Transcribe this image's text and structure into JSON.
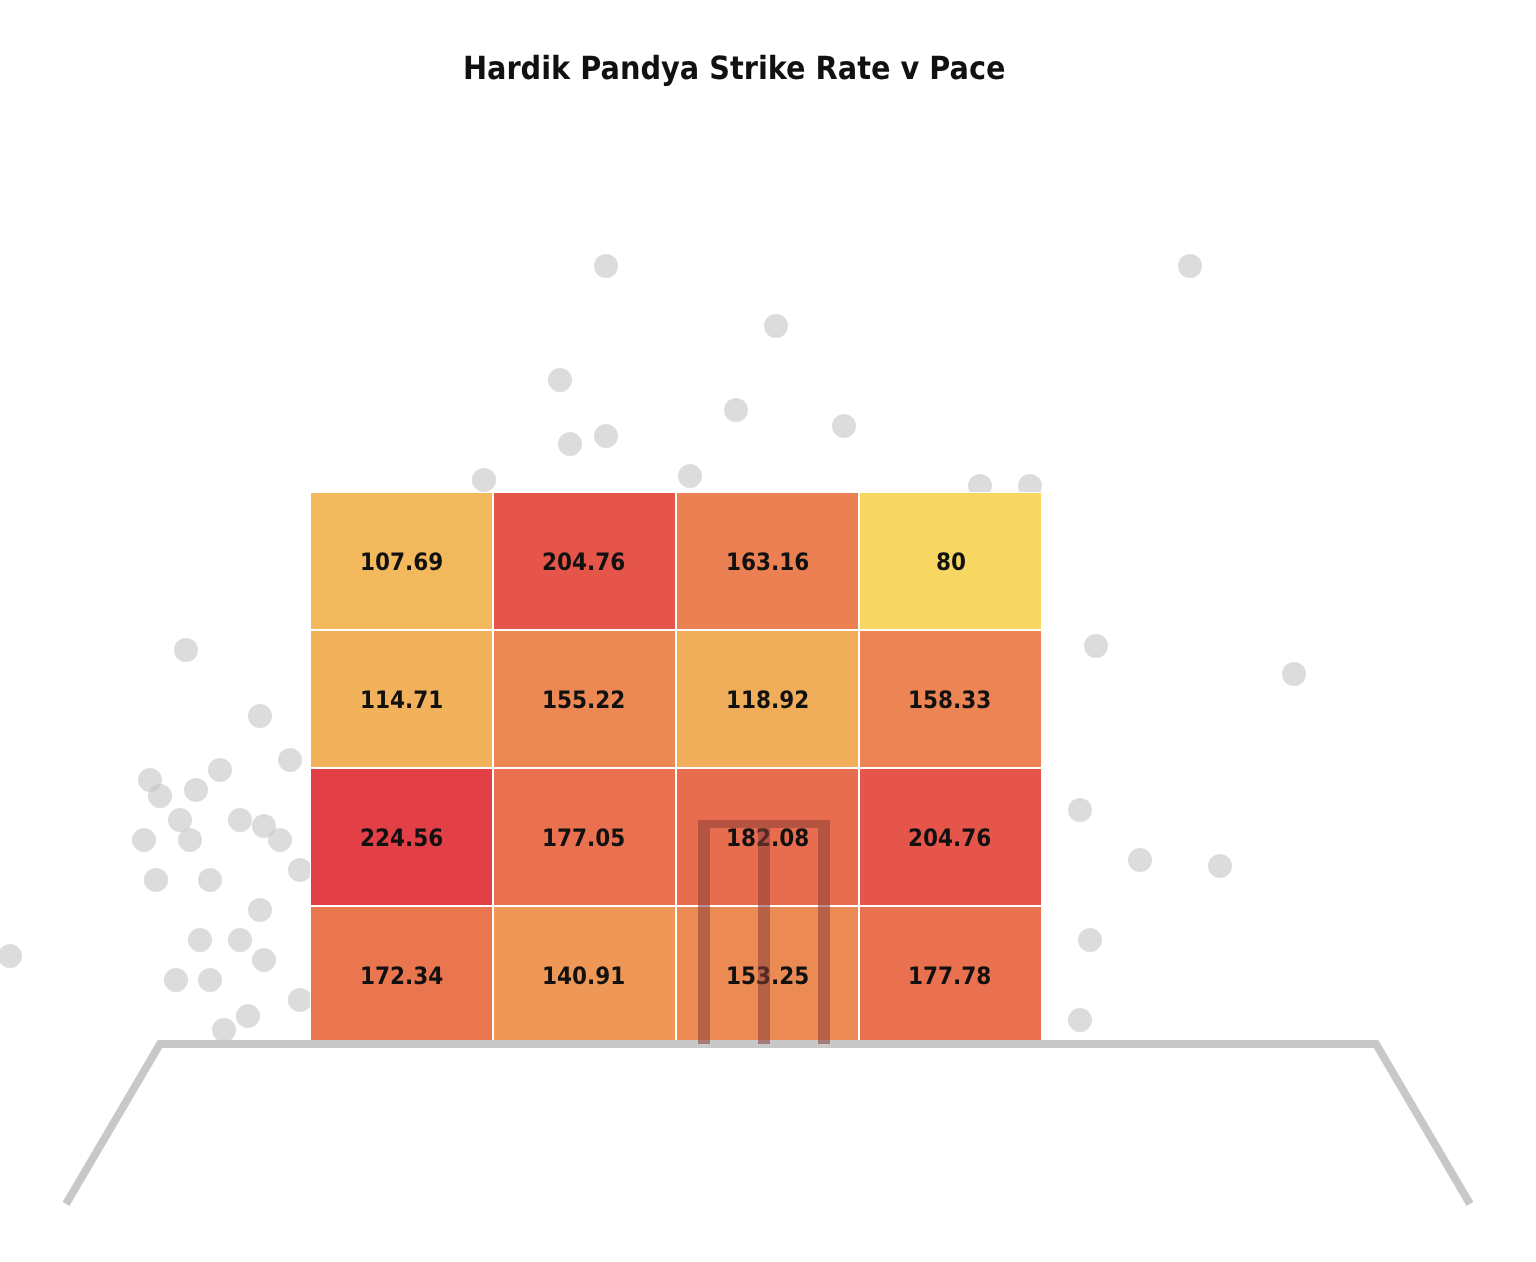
{
  "chart_data": {
    "type": "heatmap",
    "title": "Hardik Pandya Strike Rate v Pace",
    "categories": [
      null,
      null,
      null,
      null
    ],
    "y_categories": [
      null,
      null,
      null,
      null
    ],
    "cells": [
      [
        107.69,
        204.76,
        163.16,
        80
      ],
      [
        114.71,
        155.22,
        118.92,
        158.33
      ],
      [
        224.56,
        177.05,
        182.08,
        204.76
      ],
      [
        172.34,
        140.91,
        153.25,
        177.78
      ]
    ],
    "data_labels": true
  }
}
